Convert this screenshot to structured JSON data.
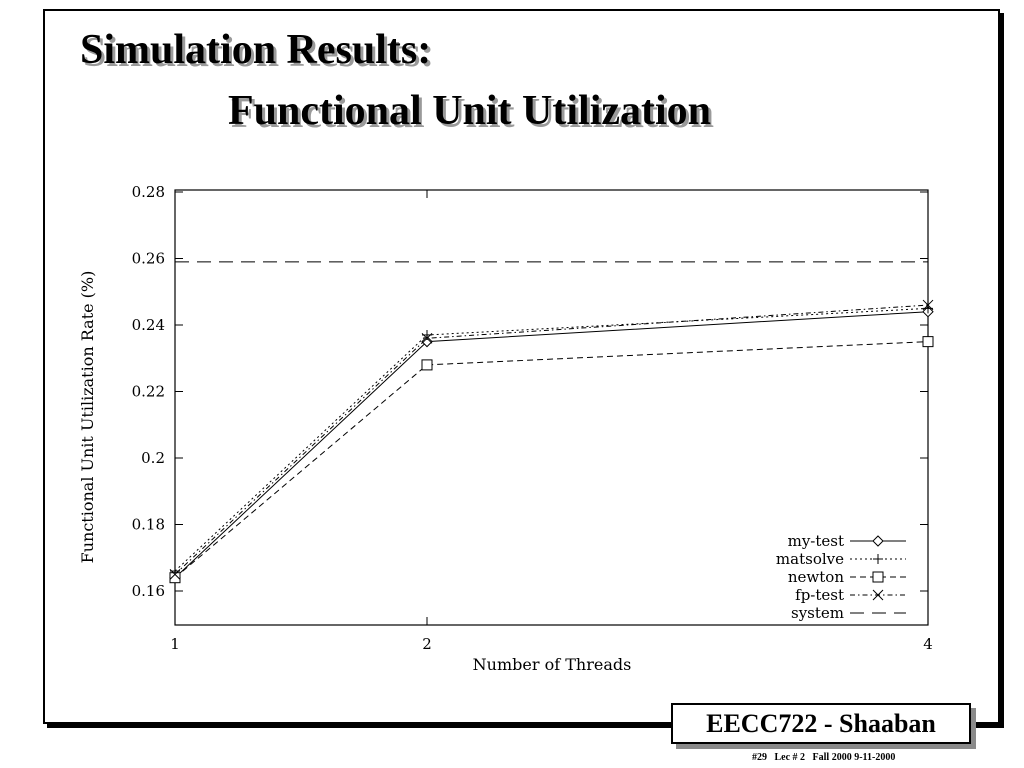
{
  "slide": {
    "title_line_1": "Simulation Results:",
    "title_line_2": "Functional Unit Utilization"
  },
  "footer": {
    "course": "EECC722 - Shaaban",
    "meta": "#29   Lec # 2   Fall 2000 9-11-2000"
  },
  "chart_data": {
    "type": "line",
    "title": "",
    "xlabel": "Number of Threads",
    "ylabel": "Functional Unit Utilization Rate (%)",
    "x": [
      1,
      2,
      4
    ],
    "xtick_labels": [
      "1",
      "2",
      "4"
    ],
    "yticks": [
      0.16,
      0.18,
      0.2,
      0.22,
      0.24,
      0.26,
      0.28
    ],
    "ytick_labels": [
      "0.16",
      "0.18",
      "0.2",
      "0.22",
      "0.24",
      "0.26",
      "0.28"
    ],
    "ylim": [
      0.15,
      0.28
    ],
    "legend_position": "bottom-right",
    "grid": false,
    "series": [
      {
        "name": "my-test",
        "values": [
          0.164,
          0.235,
          0.244
        ],
        "marker": "diamond",
        "dash": "solid"
      },
      {
        "name": "matsolve",
        "values": [
          0.166,
          0.237,
          0.245
        ],
        "marker": "plus",
        "dash": "dotted"
      },
      {
        "name": "newton",
        "values": [
          0.164,
          0.228,
          0.235
        ],
        "marker": "square",
        "dash": "dashed"
      },
      {
        "name": "fp-test",
        "values": [
          0.165,
          0.236,
          0.246
        ],
        "marker": "cross",
        "dash": "dash-dot"
      },
      {
        "name": "system",
        "values": [
          0.259,
          0.259,
          0.259
        ],
        "marker": "none",
        "dash": "long-dash"
      }
    ]
  }
}
